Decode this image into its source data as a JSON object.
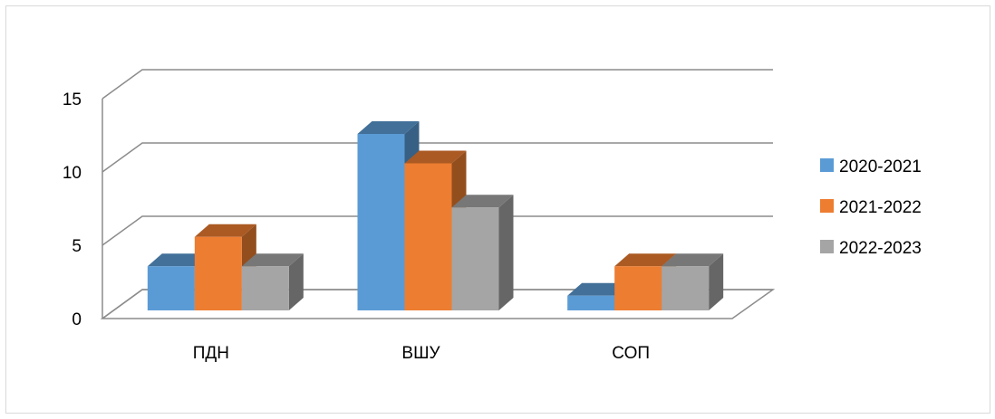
{
  "chart_data": {
    "type": "bar",
    "title": "",
    "xlabel": "",
    "ylabel": "",
    "categories": [
      "ПДН",
      "ВШУ",
      "СОП"
    ],
    "series": [
      {
        "name": "2020-2021",
        "values": [
          3,
          12,
          1
        ],
        "color": "#5B9BD5"
      },
      {
        "name": "2021-2022",
        "values": [
          5,
          10,
          3
        ],
        "color": "#ED7D31"
      },
      {
        "name": "2022-2023",
        "values": [
          3,
          7,
          3
        ],
        "color": "#A5A5A5"
      }
    ],
    "ylim": [
      0,
      15
    ],
    "yticks": [
      0,
      5,
      10,
      15
    ],
    "grid": true,
    "legend_position": "right",
    "style": "3d-clustered-column"
  }
}
